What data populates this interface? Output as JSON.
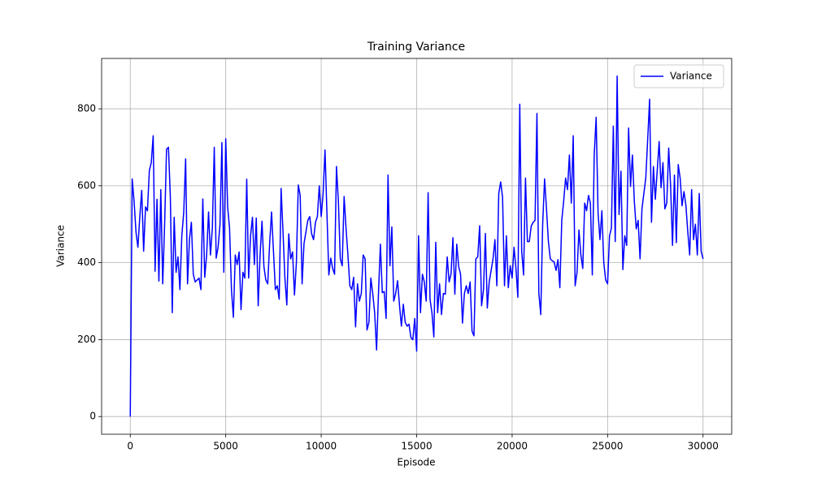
{
  "chart_data": {
    "type": "line",
    "title": "Training Variance",
    "xlabel": "Episode",
    "ylabel": "Variance",
    "x": [
      0,
      100,
      200,
      300,
      400,
      500,
      600,
      700,
      800,
      900,
      1000,
      1100,
      1200,
      1300,
      1400,
      1500,
      1600,
      1700,
      1800,
      1900,
      2000,
      2100,
      2200,
      2300,
      2400,
      2500,
      2600,
      2700,
      2800,
      2900,
      3000,
      3100,
      3200,
      3300,
      3400,
      3500,
      3600,
      3700,
      3800,
      3900,
      4000,
      4100,
      4200,
      4300,
      4400,
      4500,
      4600,
      4700,
      4800,
      4900,
      5000,
      5100,
      5200,
      5300,
      5400,
      5500,
      5600,
      5700,
      5800,
      5900,
      6000,
      6100,
      6200,
      6300,
      6400,
      6500,
      6600,
      6700,
      6800,
      6900,
      7000,
      7100,
      7200,
      7300,
      7400,
      7500,
      7600,
      7700,
      7800,
      7900,
      8000,
      8100,
      8200,
      8300,
      8400,
      8500,
      8600,
      8700,
      8800,
      8900,
      9000,
      9100,
      9200,
      9300,
      9400,
      9500,
      9600,
      9700,
      9800,
      9900,
      10000,
      10100,
      10200,
      10300,
      10400,
      10500,
      10600,
      10700,
      10800,
      10900,
      11000,
      11100,
      11200,
      11300,
      11400,
      11500,
      11600,
      11700,
      11800,
      11900,
      12000,
      12100,
      12200,
      12300,
      12400,
      12500,
      12600,
      12700,
      12800,
      12900,
      13000,
      13100,
      13200,
      13300,
      13400,
      13500,
      13600,
      13700,
      13800,
      13900,
      14000,
      14100,
      14200,
      14300,
      14400,
      14500,
      14600,
      14700,
      14800,
      14900,
      15000,
      15100,
      15200,
      15300,
      15400,
      15500,
      15600,
      15700,
      15800,
      15900,
      16000,
      16100,
      16200,
      16300,
      16400,
      16500,
      16600,
      16700,
      16800,
      16900,
      17000,
      17100,
      17200,
      17300,
      17400,
      17500,
      17600,
      17700,
      17800,
      17900,
      18000,
      18100,
      18200,
      18300,
      18400,
      18500,
      18600,
      18700,
      18800,
      18900,
      19000,
      19100,
      19200,
      19300,
      19400,
      19500,
      19600,
      19700,
      19800,
      19900,
      20000,
      20100,
      20200,
      20300,
      20400,
      20500,
      20600,
      20700,
      20800,
      20900,
      21000,
      21100,
      21200,
      21300,
      21400,
      21500,
      21600,
      21700,
      21800,
      21900,
      22000,
      22100,
      22200,
      22300,
      22400,
      22500,
      22600,
      22700,
      22800,
      22900,
      23000,
      23100,
      23200,
      23300,
      23400,
      23500,
      23600,
      23700,
      23800,
      23900,
      24000,
      24100,
      24200,
      24300,
      24400,
      24500,
      24600,
      24700,
      24800,
      24900,
      25000,
      25100,
      25200,
      25300,
      25400,
      25500,
      25600,
      25700,
      25800,
      25900,
      26000,
      26100,
      26200,
      26300,
      26400,
      26500,
      26600,
      26700,
      26800,
      26900,
      27000,
      27100,
      27200,
      27300,
      27400,
      27500,
      27600,
      27700,
      27800,
      27900,
      28000,
      28100,
      28200,
      28300,
      28400,
      28500,
      28600,
      28700,
      28800,
      28900,
      29000,
      29100,
      29200,
      29300,
      29400,
      29500,
      29600,
      29700,
      29800,
      29900,
      30000
    ],
    "series": [
      {
        "name": "Variance",
        "color": "#0000ff",
        "values": [
          0,
          618,
          560,
          480,
          440,
          520,
          588,
          430,
          545,
          535,
          640,
          660,
          730,
          378,
          565,
          352,
          590,
          345,
          500,
          695,
          700,
          570,
          270,
          518,
          375,
          415,
          330,
          470,
          530,
          670,
          345,
          460,
          505,
          370,
          350,
          355,
          360,
          330,
          566,
          362,
          420,
          532,
          420,
          490,
          700,
          412,
          440,
          500,
          712,
          375,
          722,
          545,
          490,
          330,
          258,
          420,
          395,
          428,
          278,
          375,
          360,
          617,
          360,
          470,
          518,
          395,
          516,
          288,
          420,
          508,
          390,
          355,
          345,
          450,
          532,
          430,
          330,
          340,
          305,
          593,
          480,
          360,
          290,
          475,
          410,
          428,
          316,
          400,
          602,
          575,
          345,
          450,
          480,
          510,
          520,
          475,
          460,
          505,
          520,
          600,
          520,
          580,
          693,
          530,
          368,
          412,
          385,
          370,
          650,
          560,
          410,
          392,
          572,
          490,
          420,
          340,
          330,
          362,
          233,
          345,
          300,
          320,
          420,
          410,
          225,
          245,
          360,
          320,
          270,
          173,
          320,
          448,
          322,
          325,
          255,
          628,
          392,
          493,
          300,
          320,
          353,
          290,
          235,
          292,
          245,
          235,
          240,
          205,
          200,
          255,
          170,
          470,
          270,
          370,
          350,
          300,
          582,
          305,
          270,
          207,
          453,
          270,
          345,
          265,
          320,
          318,
          415,
          350,
          370,
          465,
          318,
          448,
          390,
          370,
          243,
          320,
          340,
          320,
          350,
          222,
          210,
          410,
          415,
          496,
          288,
          330,
          476,
          282,
          350,
          380,
          410,
          460,
          340,
          580,
          610,
          570,
          340,
          470,
          335,
          392,
          360,
          440,
          385,
          310,
          812,
          430,
          368,
          620,
          455,
          455,
          495,
          505,
          510,
          788,
          320,
          265,
          500,
          618,
          540,
          455,
          410,
          405,
          402,
          380,
          408,
          335,
          510,
          560,
          620,
          590,
          680,
          555,
          730,
          340,
          375,
          485,
          420,
          385,
          555,
          535,
          575,
          555,
          368,
          680,
          778,
          530,
          460,
          535,
          400,
          355,
          345,
          470,
          490,
          755,
          455,
          885,
          525,
          638,
          382,
          470,
          445,
          750,
          598,
          680,
          560,
          488,
          510,
          410,
          540,
          580,
          620,
          720,
          825,
          505,
          650,
          565,
          640,
          715,
          595,
          660,
          540,
          555,
          698,
          600,
          445,
          628,
          452,
          655,
          620,
          548,
          585,
          550,
          480,
          420,
          590,
          460,
          500,
          420,
          580,
          430,
          410
        ]
      }
    ],
    "xlim": [
      -1500,
      31500
    ],
    "ylim": [
      -46,
      931
    ],
    "xticks": [
      0,
      5000,
      10000,
      15000,
      20000,
      25000,
      30000
    ],
    "yticks": [
      0,
      200,
      400,
      600,
      800
    ],
    "grid": true,
    "legend": "upper right"
  }
}
